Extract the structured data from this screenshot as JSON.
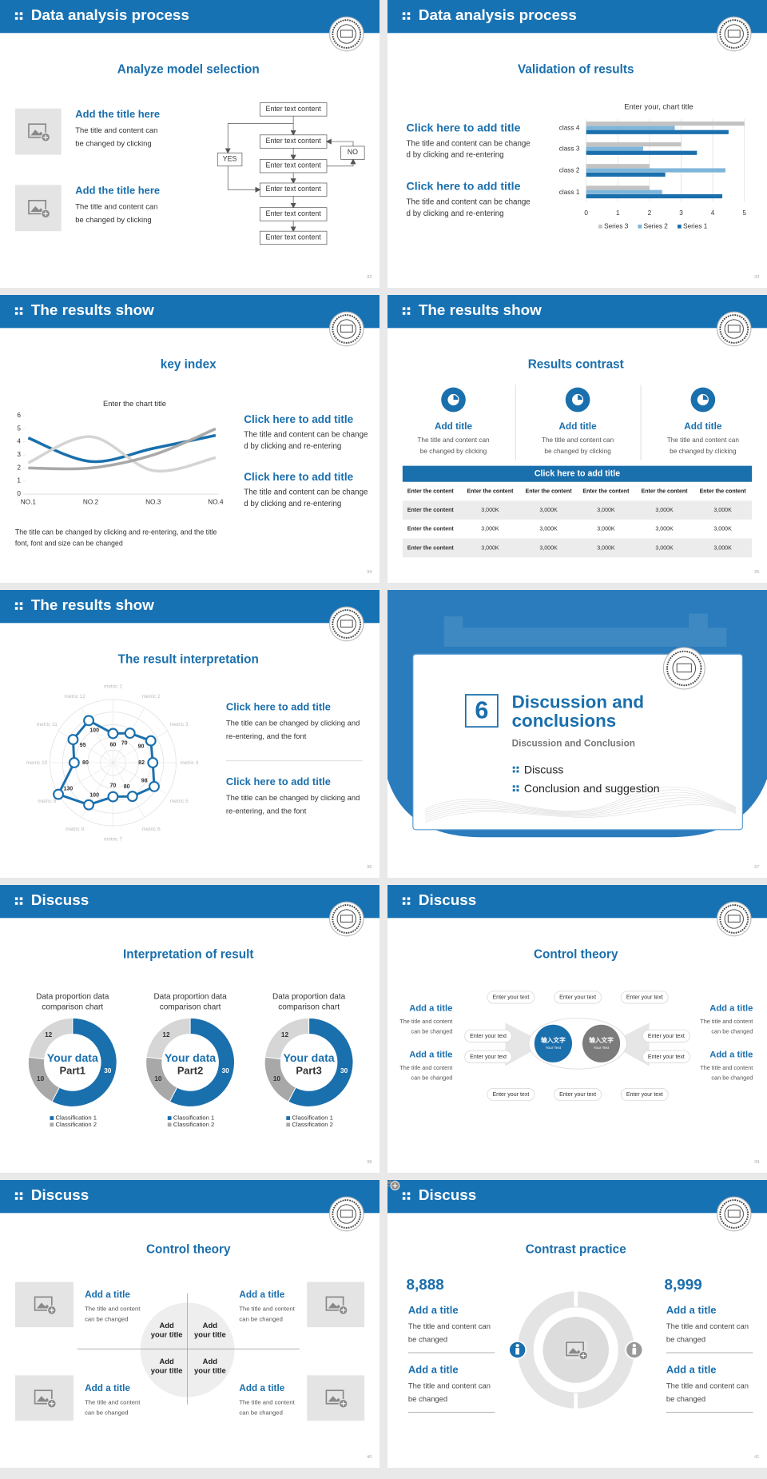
{
  "slides": [
    {
      "header": "Data analysis process",
      "title": "Analyze model selection",
      "items": [
        {
          "title": "Add the title here",
          "text": "The title and content can\nbe changed by clicking"
        },
        {
          "title": "Add the title here",
          "text": "The title and content can\nbe changed by clicking"
        }
      ],
      "flow": {
        "steps": [
          "Enter text content",
          "Enter text content",
          "Enter text content",
          "Enter text content",
          "Enter text content",
          "Enter text content"
        ],
        "yes": "YES",
        "no": "NO"
      },
      "page": "32"
    },
    {
      "header": "Data analysis process",
      "title": "Validation of results",
      "items": [
        {
          "title": "Click here to add title",
          "text": "The title and content can be change\nd by clicking and re-entering"
        },
        {
          "title": "Click here to add title",
          "text": "The title and content can be change\nd by clicking and re-entering"
        }
      ],
      "chart": {
        "type": "bar",
        "title": "Enter your, chart title",
        "categories": [
          "class 1",
          "class 2",
          "class 3",
          "class 4"
        ],
        "series": [
          {
            "name": "Series 1",
            "color": "#1a6fad",
            "values": [
              4.3,
              2.5,
              3.5,
              4.5
            ]
          },
          {
            "name": "Series 2",
            "color": "#7fb5d9",
            "values": [
              2.4,
              4.4,
              1.8,
              2.8
            ]
          },
          {
            "name": "Series 3",
            "color": "#c3c3c3",
            "values": [
              2,
              2,
              3,
              5
            ]
          }
        ],
        "xlim": [
          0,
          5
        ],
        "xticks": [
          0,
          1,
          2,
          3,
          4,
          5
        ],
        "grid": true
      },
      "page": "33"
    },
    {
      "header": "The results show",
      "title": "key index",
      "chart": {
        "type": "line",
        "title": "Enter the chart title",
        "categories": [
          "NO.1",
          "NO.2",
          "NO.3",
          "NO.4"
        ],
        "series": [
          {
            "color": "#1a6fad",
            "values": [
              4.3,
              2.5,
              3.5,
              4.5
            ]
          },
          {
            "color": "#d4d4d4",
            "values": [
              2.4,
              4.4,
              1.8,
              2.8
            ]
          },
          {
            "color": "#a9a9a9",
            "values": [
              2,
              2,
              3,
              5
            ]
          }
        ],
        "ylim": [
          0,
          6
        ],
        "yticks": [
          0,
          1,
          2,
          3,
          4,
          5,
          6
        ]
      },
      "items": [
        {
          "title": "Click here to add title",
          "text": "The title and content can be change\nd by clicking and re-entering"
        },
        {
          "title": "Click here to add title",
          "text": "The title and content can be change\nd by clicking and re-entering"
        }
      ],
      "note": "The title can be changed by clicking and re-entering, and the title\nfont, font and size can be changed",
      "page": "34"
    },
    {
      "header": "The results show",
      "title": "Results contrast",
      "columns": [
        {
          "title": "Add title",
          "text": "The title and content can\nbe changed by clicking"
        },
        {
          "title": "Add title",
          "text": "The title and content can\nbe changed by clicking"
        },
        {
          "title": "Add title",
          "text": "The title and content can\nbe changed by clicking"
        }
      ],
      "table": {
        "caption": "Click here to add title",
        "header": [
          "Enter the content",
          "Enter the content",
          "Enter the content",
          "Enter the content",
          "Enter the content",
          "Enter the content"
        ],
        "rows": [
          [
            "Enter the content",
            "3,000K",
            "3,000K",
            "3,000K",
            "3,000K",
            "3,000K"
          ],
          [
            "Enter the content",
            "3,000K",
            "3,000K",
            "3,000K",
            "3,000K",
            "3,000K"
          ],
          [
            "Enter the content",
            "3,000K",
            "3,000K",
            "3,000K",
            "3,000K",
            "3,000K"
          ]
        ]
      },
      "page": "35"
    },
    {
      "header": "The results show",
      "title": "The result interpretation",
      "chart": {
        "type": "radar",
        "categories": [
          "metric 1",
          "metric 2",
          "metric 3",
          "metric 4",
          "metric 5",
          "metric 6",
          "metric 7",
          "metric 8",
          "metric 9",
          "metric 10",
          "metric 11",
          "metric 12"
        ],
        "values": [
          60,
          70,
          90,
          82,
          98,
          80,
          70,
          100,
          130,
          80,
          95,
          100
        ],
        "rlim": [
          0,
          130
        ],
        "color": "#1a6fad"
      },
      "items": [
        {
          "title": "Click here to add  title",
          "text": "The title can be changed by clicking and\nre-entering, and the font"
        },
        {
          "title": "Click here to add  title",
          "text": "The title can be changed by clicking and\nre-entering, and the font"
        }
      ],
      "page": "36"
    },
    {
      "section": {
        "number": "6",
        "title": "Discussion and\nconclusions",
        "subtitle": "Discussion and Conclusion",
        "bullets": [
          "Discuss",
          "Conclusion and suggestion"
        ]
      },
      "page": "37"
    },
    {
      "header": "Discuss",
      "title": "Interpretation of result",
      "charts": [
        {
          "type": "donut",
          "title": "Data proportion data\ncomparison chart",
          "center": "Your data",
          "part": "Part1",
          "values": [
            30,
            10,
            12
          ],
          "colors": [
            "#1a6fad",
            "#a8a8a8",
            "#d6d6d6"
          ],
          "legend": [
            "Classification 1",
            "Classification 2"
          ]
        },
        {
          "type": "donut",
          "title": "Data proportion data\ncomparison chart",
          "center": "Your data",
          "part": "Part2",
          "values": [
            30,
            10,
            12
          ],
          "colors": [
            "#1a6fad",
            "#a8a8a8",
            "#d6d6d6"
          ],
          "legend": [
            "Classification 1",
            "Classification 2"
          ]
        },
        {
          "type": "donut",
          "title": "Data proportion data\ncomparison chart",
          "center": "Your data",
          "part": "Part3",
          "values": [
            30,
            10,
            12
          ],
          "colors": [
            "#1a6fad",
            "#a8a8a8",
            "#d6d6d6"
          ],
          "legend": [
            "Classification 1",
            "Classification 2"
          ]
        }
      ],
      "page": "38"
    },
    {
      "header": "Discuss",
      "title": "Control theory",
      "sides": [
        {
          "title": "Add a title",
          "text": "The title and content\ncan be changed"
        },
        {
          "title": "Add a title",
          "text": "The title and content\ncan be changed"
        },
        {
          "title": "Add a title",
          "text": "The title and content\ncan be changed"
        },
        {
          "title": "Add a title",
          "text": "The title and content\ncan be changed"
        }
      ],
      "boxes": [
        "Enter your text",
        "Enter your text",
        "Enter your text",
        "Enter your text",
        "Enter your text",
        "Enter your text",
        "Enter your text",
        "Enter your text",
        "Enter your text",
        "Enter your text"
      ],
      "hubs": [
        {
          "label": "输入文字",
          "sub": "Your Text"
        },
        {
          "label": "输入文字",
          "sub": "Your Text"
        }
      ],
      "page": "39"
    },
    {
      "header": "Discuss",
      "title": "Control theory",
      "items": [
        {
          "title": "Add a title",
          "text": "The title and content\ncan be changed"
        },
        {
          "title": "Add a title",
          "text": "The title and content\ncan be changed"
        },
        {
          "title": "Add a title",
          "text": "The title and content\ncan be changed"
        },
        {
          "title": "Add a title",
          "text": "The title and content\ncan be changed"
        }
      ],
      "quadrants": [
        "Add\nyour title",
        "Add\nyour title",
        "Add\nyour title",
        "Add\nyour title"
      ],
      "page": "40"
    },
    {
      "header": "Discuss",
      "title": "Contrast practice",
      "columns": [
        {
          "value": "8,888",
          "items": [
            {
              "title": "Add a title",
              "text": "The title and content can\nbe changed"
            },
            {
              "title": "Add a title",
              "text": "The title and content can\nbe changed"
            }
          ]
        },
        {
          "value": "8,999",
          "items": [
            {
              "title": "Add a title",
              "text": "The title and content can\nbe changed"
            },
            {
              "title": "Add a title",
              "text": "The title and content can\nbe changed"
            }
          ]
        }
      ],
      "page": "41"
    }
  ]
}
